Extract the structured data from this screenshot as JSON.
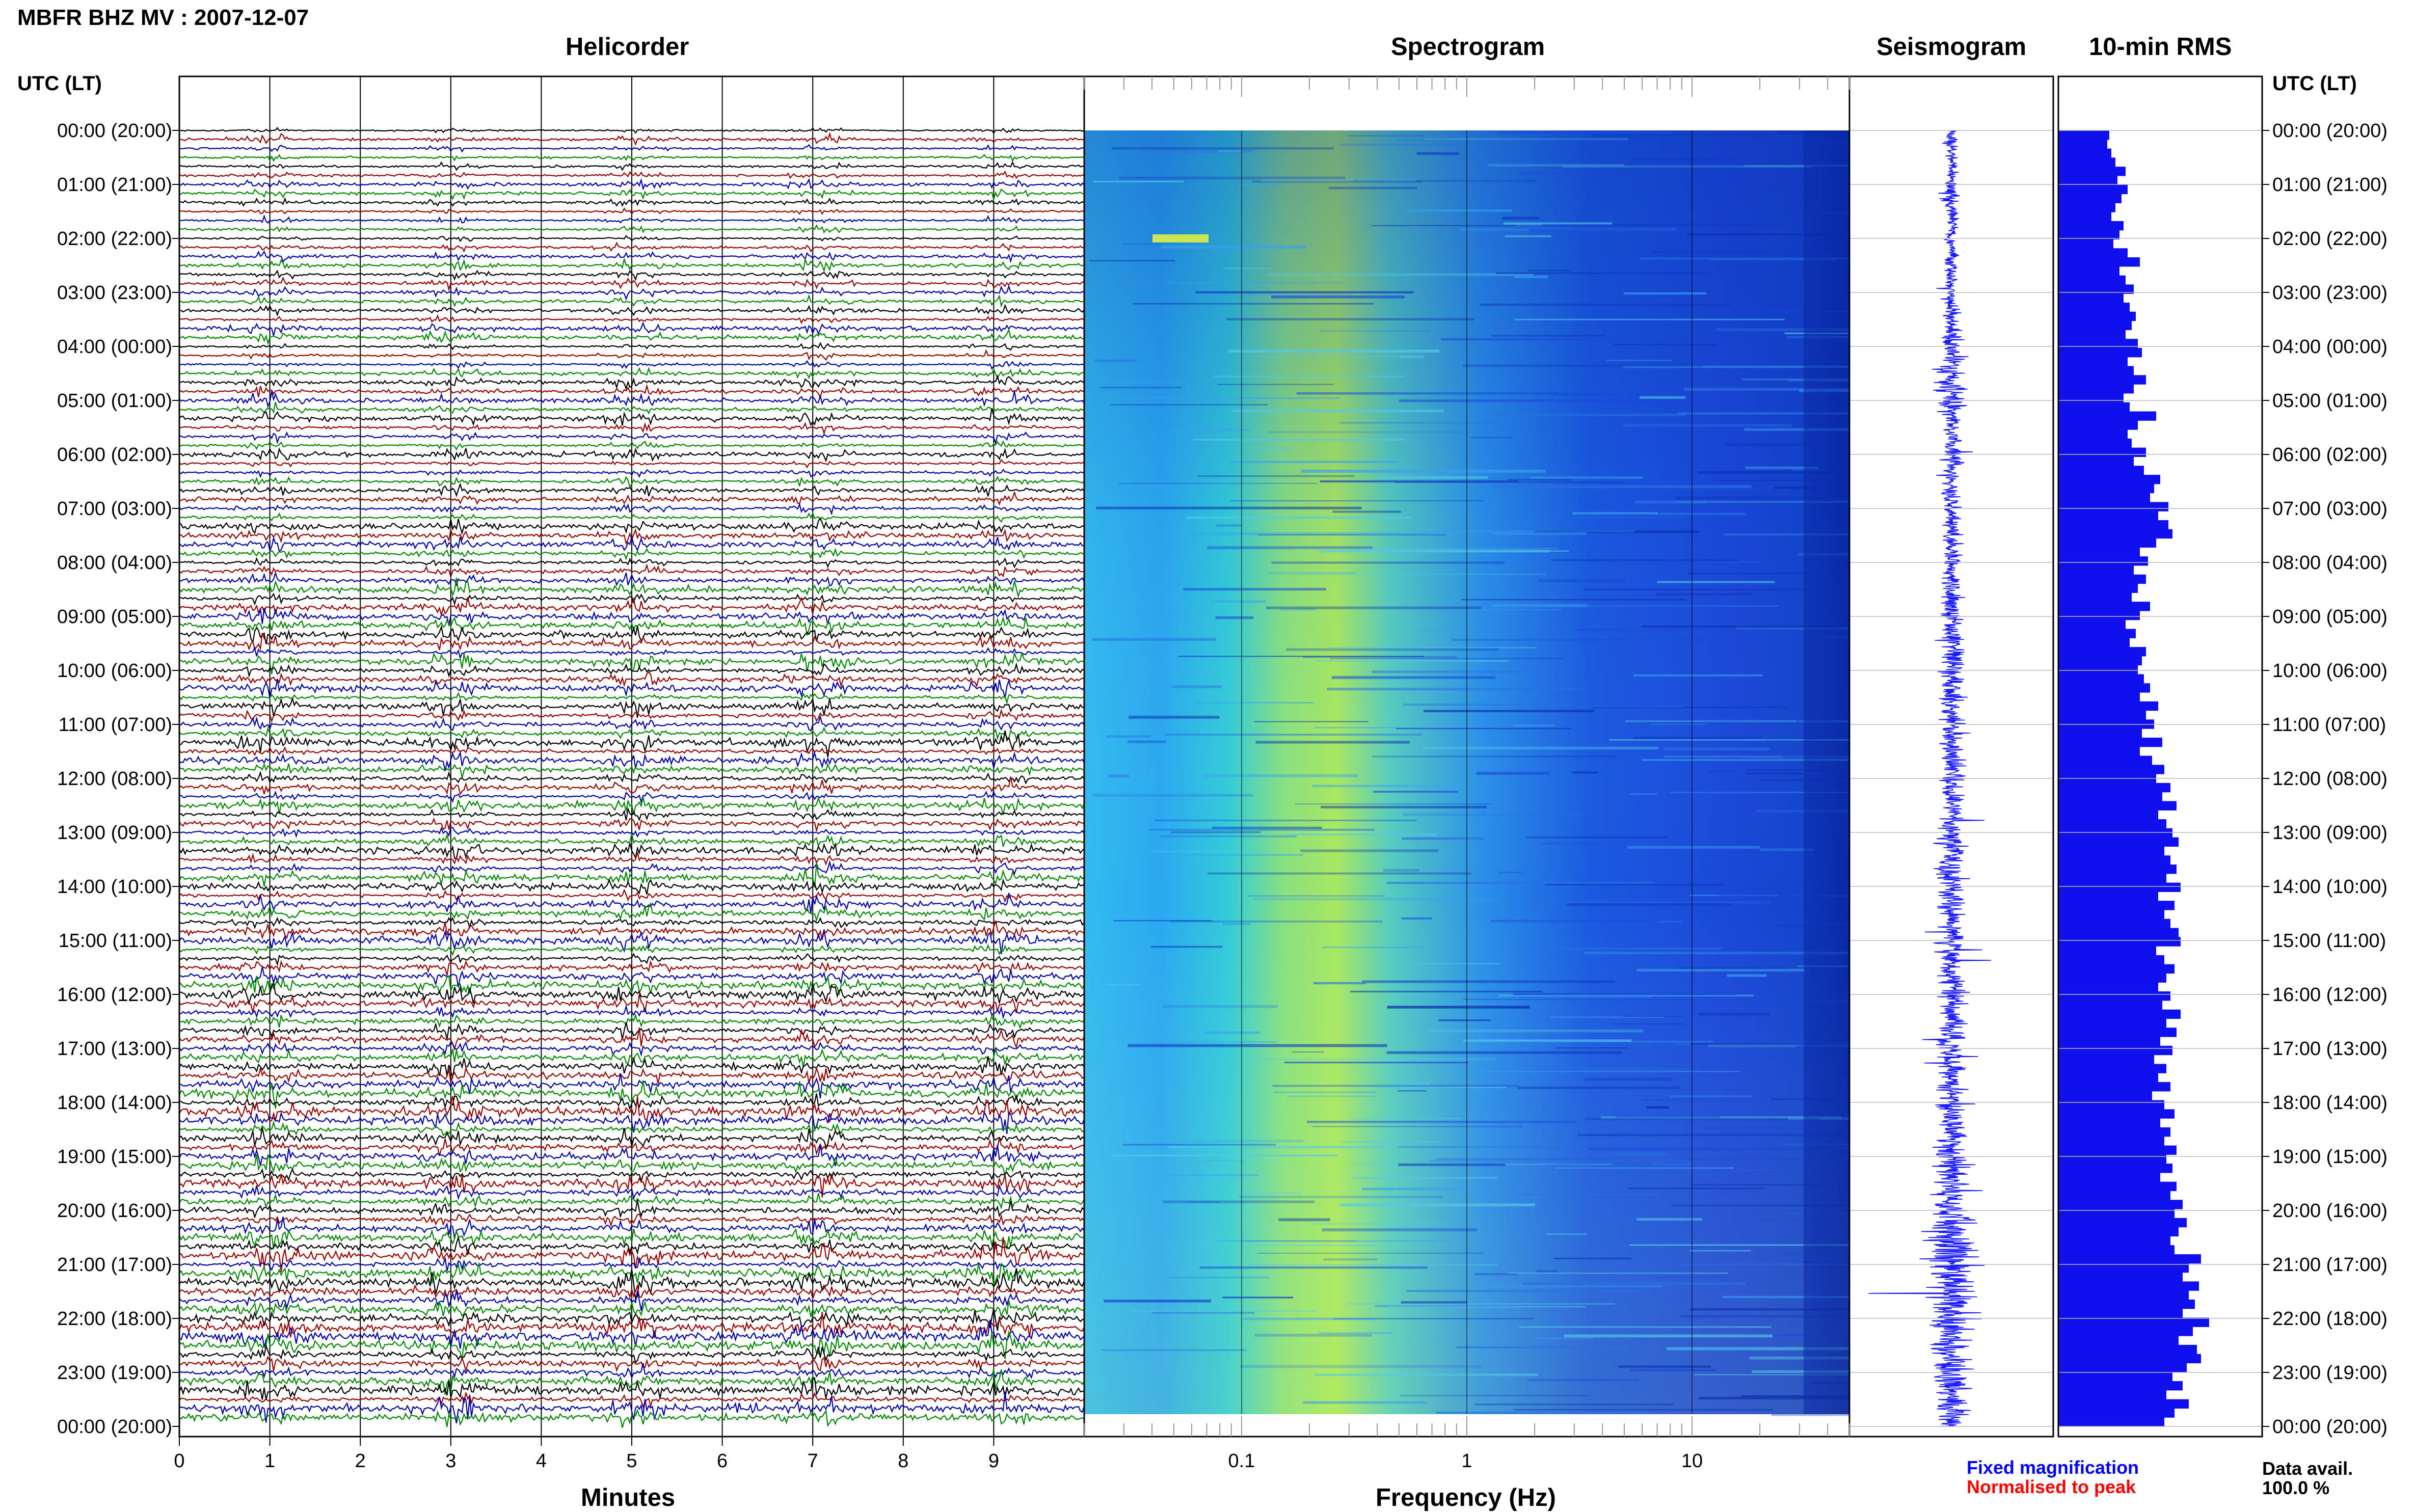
{
  "title": "MBFR BHZ MV : 2007-12-07",
  "panels": {
    "helicorder": "Helicorder",
    "spectrogram": "Spectrogram",
    "seismogram": "Seismogram",
    "rms": "10-min RMS"
  },
  "axis_labels": {
    "left_header": "UTC (LT)",
    "right_header": "UTC (LT)",
    "helicorder_x": "Minutes",
    "spectrogram_x": "Frequency (Hz)"
  },
  "legend": {
    "fixed": "Fixed magnification",
    "normalised": "Normalised to peak",
    "fixed_color": "#0000ff",
    "normalised_color": "#ff0000"
  },
  "data_availability": {
    "label": "Data avail.",
    "value": "100.0 %"
  },
  "colors": {
    "trace_cycle": [
      "#000000",
      "#990000",
      "#0000aa",
      "#008800"
    ],
    "seismogram": "#1a1aff",
    "rms_bar": "#1010ee"
  },
  "chart_data": [
    {
      "type": "line",
      "panel": "Helicorder",
      "xlabel": "Minutes",
      "x_ticks": [
        "0",
        "1",
        "2",
        "3",
        "4",
        "5",
        "6",
        "7",
        "8",
        "9"
      ],
      "xlim": [
        0,
        10
      ],
      "row_labels": [
        "00:00 (20:00)",
        "01:00 (21:00)",
        "02:00 (22:00)",
        "03:00 (23:00)",
        "04:00 (00:00)",
        "05:00 (01:00)",
        "06:00 (02:00)",
        "07:00 (03:00)",
        "08:00 (04:00)",
        "09:00 (05:00)",
        "10:00 (06:00)",
        "11:00 (07:00)",
        "12:00 (08:00)",
        "13:00 (09:00)",
        "14:00 (10:00)",
        "15:00 (11:00)",
        "16:00 (12:00)",
        "17:00 (13:00)",
        "18:00 (14:00)",
        "19:00 (15:00)",
        "20:00 (16:00)",
        "21:00 (17:00)",
        "22:00 (18:00)",
        "23:00 (19:00)",
        "00:00 (20:00)"
      ],
      "traces_per_hour": 6,
      "trace_minutes": 10
    },
    {
      "type": "heatmap",
      "panel": "Spectrogram",
      "xlabel": "Frequency (Hz)",
      "x_scale": "log",
      "x_ticks": [
        "0.1",
        "1",
        "10"
      ],
      "xlim": [
        0.02,
        50
      ]
    },
    {
      "type": "line",
      "panel": "Seismogram"
    },
    {
      "type": "bar",
      "panel": "10-min RMS",
      "orientation": "horizontal",
      "values": [
        0.25,
        0.24,
        0.26,
        0.28,
        0.33,
        0.29,
        0.34,
        0.31,
        0.28,
        0.26,
        0.32,
        0.3,
        0.27,
        0.34,
        0.4,
        0.3,
        0.33,
        0.37,
        0.32,
        0.35,
        0.38,
        0.36,
        0.33,
        0.39,
        0.41,
        0.34,
        0.37,
        0.43,
        0.37,
        0.32,
        0.35,
        0.48,
        0.39,
        0.34,
        0.36,
        0.43,
        0.37,
        0.42,
        0.5,
        0.47,
        0.45,
        0.54,
        0.49,
        0.54,
        0.56,
        0.48,
        0.4,
        0.44,
        0.37,
        0.43,
        0.39,
        0.36,
        0.45,
        0.4,
        0.33,
        0.38,
        0.35,
        0.43,
        0.41,
        0.39,
        0.42,
        0.45,
        0.4,
        0.49,
        0.43,
        0.47,
        0.41,
        0.51,
        0.4,
        0.46,
        0.52,
        0.48,
        0.55,
        0.51,
        0.58,
        0.49,
        0.53,
        0.56,
        0.59,
        0.52,
        0.55,
        0.58,
        0.53,
        0.6,
        0.49,
        0.57,
        0.52,
        0.55,
        0.59,
        0.6,
        0.48,
        0.52,
        0.57,
        0.53,
        0.49,
        0.55,
        0.51,
        0.6,
        0.53,
        0.58,
        0.5,
        0.56,
        0.47,
        0.53,
        0.49,
        0.55,
        0.46,
        0.52,
        0.57,
        0.5,
        0.55,
        0.52,
        0.58,
        0.53,
        0.56,
        0.5,
        0.58,
        0.55,
        0.61,
        0.57,
        0.63,
        0.59,
        0.55,
        0.57,
        0.7,
        0.64,
        0.61,
        0.69,
        0.64,
        0.67,
        0.61,
        0.74,
        0.66,
        0.59,
        0.68,
        0.7,
        0.63,
        0.56,
        0.61,
        0.53,
        0.64,
        0.57,
        0.52
      ]
    }
  ]
}
